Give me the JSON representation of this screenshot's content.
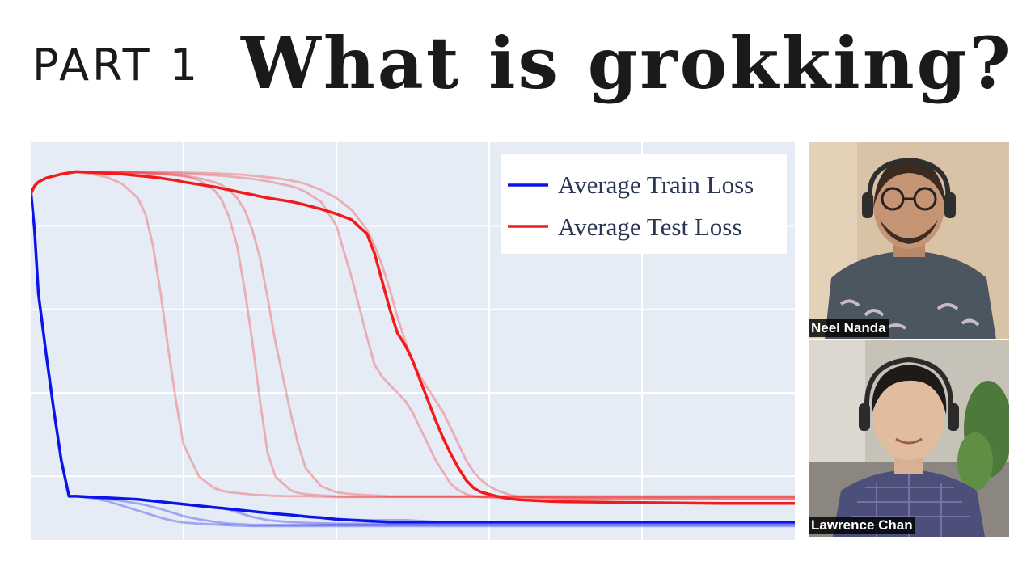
{
  "header": {
    "part_label": "PART 1",
    "title": "What is grokking?"
  },
  "chart_data": {
    "type": "line",
    "title": "",
    "xlabel": "",
    "ylabel": "",
    "xlim": [
      0,
      100
    ],
    "ylim": [
      0,
      100
    ],
    "grid": true,
    "legend_position": "top-right",
    "colors": {
      "background": "#e6ecf6",
      "grid": "#ffffff",
      "train": "#0b14e6",
      "test": "#f21a1a"
    },
    "x": [
      0,
      0.5,
      1,
      2,
      3,
      4,
      5,
      6,
      8,
      10,
      12,
      14,
      15,
      16,
      17,
      18,
      19,
      20,
      22,
      24,
      25,
      26,
      27,
      28,
      29,
      30,
      31,
      32,
      34,
      35,
      36,
      38,
      40,
      42,
      44,
      45,
      46,
      47,
      48,
      49,
      50,
      51,
      52,
      53,
      54,
      55,
      56,
      57,
      58,
      59,
      60,
      61,
      62,
      63,
      64,
      66,
      68,
      70,
      75,
      80,
      85,
      90,
      95,
      100
    ],
    "series": [
      {
        "name": "Average Train Loss",
        "role": "train-mean",
        "values": [
          88,
          78,
          62,
          47,
          33,
          20,
          11,
          11,
          10.8,
          10.6,
          10.4,
          10.2,
          10,
          9.8,
          9.6,
          9.4,
          9.2,
          9,
          8.6,
          8.2,
          8,
          7.8,
          7.6,
          7.4,
          7.2,
          7,
          6.8,
          6.6,
          6.3,
          6.1,
          5.9,
          5.6,
          5.2,
          5,
          4.8,
          4.7,
          4.6,
          4.5,
          4.5,
          4.5,
          4.5,
          4.5,
          4.5,
          4.5,
          4.5,
          4.5,
          4.5,
          4.5,
          4.5,
          4.5,
          4.5,
          4.5,
          4.5,
          4.5,
          4.5,
          4.5,
          4.5,
          4.5,
          4.5,
          4.5,
          4.5,
          4.5,
          4.5,
          4.5
        ]
      },
      {
        "name": "Average Test Loss",
        "role": "test-mean",
        "values": [
          87,
          89,
          90,
          91,
          91.5,
          92,
          92.3,
          92.6,
          92.4,
          92.2,
          92,
          91.6,
          91.4,
          91.2,
          91,
          90.7,
          90.4,
          90,
          89.4,
          88.8,
          88.4,
          88,
          87.6,
          87.2,
          86.8,
          86.4,
          86,
          85.7,
          85.1,
          84.7,
          84.2,
          83.2,
          82,
          80.5,
          77,
          72,
          65,
          58,
          52,
          49,
          45,
          40,
          35,
          30,
          25.5,
          21.5,
          18,
          15,
          13,
          12,
          11.5,
          11,
          10.6,
          10.3,
          10.1,
          9.9,
          9.7,
          9.6,
          9.5,
          9.4,
          9.3,
          9.2,
          9.2,
          9.2
        ]
      },
      {
        "name": "",
        "role": "train-run",
        "values": [
          88,
          78,
          62,
          47,
          33,
          20,
          11,
          11,
          10.5,
          9.8,
          8.6,
          7.4,
          6.8,
          6.2,
          5.6,
          5.1,
          4.7,
          4.4,
          4.1,
          3.9,
          3.8,
          3.7,
          3.6,
          3.6,
          3.5,
          3.5,
          3.5,
          3.5,
          3.5,
          3.5,
          3.5,
          3.5,
          3.5,
          3.5,
          3.5,
          3.5,
          3.5,
          3.5,
          3.5,
          3.5,
          3.5,
          3.5,
          3.5,
          3.5,
          3.5,
          3.5,
          3.5,
          3.5,
          3.5,
          3.5,
          3.5,
          3.5,
          3.5,
          3.5,
          3.5,
          3.5,
          3.5,
          3.5,
          3.5,
          3.5,
          3.5,
          3.5,
          3.5,
          3.5
        ]
      },
      {
        "name": "",
        "role": "train-run",
        "values": [
          88,
          78,
          62,
          47,
          33,
          20,
          11,
          11,
          10.7,
          10.3,
          9.8,
          9.2,
          8.8,
          8.3,
          7.8,
          7.2,
          6.6,
          6,
          5.2,
          4.6,
          4.3,
          4.1,
          4,
          3.9,
          3.8,
          3.8,
          3.8,
          3.8,
          3.8,
          3.8,
          3.8,
          3.8,
          3.8,
          3.8,
          3.8,
          3.8,
          3.8,
          3.8,
          3.8,
          3.8,
          3.8,
          3.8,
          3.8,
          3.8,
          3.8,
          3.8,
          3.8,
          3.8,
          3.8,
          3.8,
          3.8,
          3.8,
          3.8,
          3.8,
          3.8,
          3.8,
          3.8,
          3.8,
          3.8,
          3.8,
          3.8,
          3.8,
          3.8,
          3.8
        ]
      },
      {
        "name": "",
        "role": "train-run",
        "values": [
          88,
          78,
          62,
          47,
          33,
          20,
          11,
          11,
          10.8,
          10.6,
          10.4,
          10.2,
          10,
          9.8,
          9.6,
          9.4,
          9.2,
          9,
          8.6,
          8.2,
          8,
          7.6,
          7,
          6.4,
          5.8,
          5.4,
          5,
          4.8,
          4.5,
          4.4,
          4.3,
          4.2,
          4.1,
          4.1,
          4.1,
          4.1,
          4.1,
          4.1,
          4.1,
          4.1,
          4.1,
          4.1,
          4.1,
          4.1,
          4.1,
          4.1,
          4.1,
          4.1,
          4.1,
          4.1,
          4.1,
          4.1,
          4.1,
          4.1,
          4.1,
          4.1,
          4.1,
          4.1,
          4.1,
          4.1,
          4.1,
          4.1,
          4.1,
          4.1
        ]
      },
      {
        "name": "",
        "role": "train-run",
        "values": [
          88,
          78,
          62,
          47,
          33,
          20,
          11,
          11,
          10.8,
          10.6,
          10.4,
          10.2,
          10,
          9.8,
          9.6,
          9.4,
          9.2,
          9,
          8.6,
          8.2,
          8,
          7.8,
          7.6,
          7.4,
          7.2,
          7,
          6.8,
          6.6,
          6.3,
          6.1,
          5.9,
          5.6,
          5.3,
          5.1,
          5,
          5,
          5,
          5,
          5,
          5,
          4.9,
          4.8,
          4.7,
          4.6,
          4.6,
          4.6,
          4.6,
          4.6,
          4.6,
          4.6,
          4.6,
          4.6,
          4.6,
          4.6,
          4.6,
          4.6,
          4.6,
          4.6,
          4.6,
          4.6,
          4.6,
          4.6,
          4.6,
          4.6
        ]
      },
      {
        "name": "",
        "role": "test-run",
        "values": [
          87,
          89,
          90,
          91,
          91.5,
          92,
          92.3,
          92.5,
          92,
          91.2,
          89.5,
          86,
          82,
          74,
          62,
          48,
          35,
          24,
          16,
          13,
          12.4,
          12,
          11.8,
          11.6,
          11.4,
          11.3,
          11.2,
          11.1,
          11,
          11,
          11,
          10.9,
          10.8,
          10.8,
          10.8,
          10.8,
          10.8,
          10.8,
          10.8,
          10.8,
          10.8,
          10.8,
          10.8,
          10.8,
          10.8,
          10.8,
          10.8,
          10.8,
          10.8,
          10.8,
          10.8,
          10.8,
          10.8,
          10.8,
          10.8,
          10.8,
          10.8,
          10.8,
          10.8,
          10.8,
          10.8,
          10.8,
          10.8,
          10.8
        ]
      },
      {
        "name": "",
        "role": "test-run",
        "values": [
          87,
          89,
          90,
          91,
          91.5,
          92,
          92.3,
          92.6,
          92.6,
          92.5,
          92.4,
          92.3,
          92.2,
          92.1,
          92,
          91.9,
          91.7,
          91.5,
          90.5,
          88,
          85.5,
          81,
          74,
          63,
          50,
          35,
          22,
          16,
          12.5,
          11.8,
          11.5,
          11.2,
          11,
          10.9,
          10.9,
          10.9,
          10.9,
          10.9,
          10.9,
          10.9,
          10.9,
          10.9,
          10.9,
          10.9,
          10.9,
          10.9,
          10.9,
          10.9,
          10.9,
          10.9,
          10.9,
          10.9,
          10.9,
          10.9,
          10.9,
          10.9,
          10.9,
          10.9,
          10.9,
          10.9,
          10.9,
          10.9,
          10.9,
          10.9
        ]
      },
      {
        "name": "",
        "role": "test-run",
        "values": [
          87,
          89,
          90,
          91,
          91.5,
          92,
          92.3,
          92.6,
          92.6,
          92.5,
          92.4,
          92.3,
          92.2,
          92.1,
          92,
          91.9,
          91.8,
          91.6,
          91,
          90,
          89.2,
          88,
          86,
          83,
          78,
          71,
          61,
          50,
          32,
          24,
          18,
          13.5,
          12,
          11.5,
          11.3,
          11.2,
          11.1,
          11,
          11,
          11,
          11,
          11,
          11,
          11,
          11,
          11,
          11,
          11,
          11,
          11,
          11,
          11,
          11,
          11,
          11,
          11,
          11,
          11,
          11,
          11,
          11,
          11,
          11,
          11
        ]
      },
      {
        "name": "",
        "role": "test-run",
        "values": [
          87,
          89,
          90,
          91,
          91.5,
          92,
          92.3,
          92.6,
          92.6,
          92.5,
          92.5,
          92.4,
          92.4,
          92.3,
          92.3,
          92.2,
          92.2,
          92.1,
          91.9,
          91.7,
          91.6,
          91.4,
          91.2,
          91,
          90.8,
          90.5,
          90.2,
          89.8,
          89,
          88.4,
          87.5,
          85,
          79,
          66,
          51,
          44,
          41,
          39,
          37,
          35,
          32,
          28,
          24,
          20,
          17,
          14,
          12.5,
          11.5,
          11,
          10.8,
          10.7,
          10.6,
          10.5,
          10.5,
          10.4,
          10.4,
          10.4,
          10.4,
          10.4,
          10.4,
          10.4,
          10.4,
          10.4,
          10.4
        ]
      },
      {
        "name": "",
        "role": "test-run",
        "values": [
          87,
          89,
          90,
          91,
          91.5,
          92,
          92.3,
          92.6,
          92.6,
          92.6,
          92.6,
          92.6,
          92.6,
          92.5,
          92.5,
          92.5,
          92.5,
          92.4,
          92.3,
          92.2,
          92.1,
          92,
          91.9,
          91.8,
          91.6,
          91.4,
          91.2,
          91,
          90.4,
          90,
          89.5,
          88,
          86,
          83,
          78,
          74,
          69,
          63,
          56,
          50,
          45,
          41,
          38,
          35,
          32,
          28,
          24,
          20,
          17,
          15,
          13.5,
          12.5,
          11.8,
          11.2,
          10.9,
          10.7,
          10.6,
          10.5,
          10.4,
          10.4,
          10.4,
          10.4,
          10.4,
          10.4
        ]
      }
    ]
  },
  "participants": [
    {
      "name": "Neel Nanda"
    },
    {
      "name": "Lawrence Chan"
    }
  ]
}
